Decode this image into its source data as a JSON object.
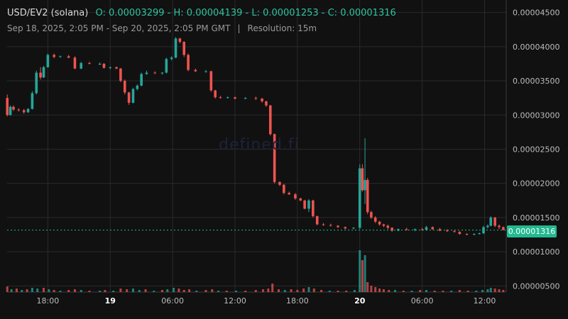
{
  "header": {
    "title": "USD/EV2 (solana)",
    "ohlc": "O: 0.00003299 - H: 0.00004139 - L: 0.00001253 - C: 0.00001316",
    "range": "Sep 18, 2025, 2:05 PM - Sep 20, 2025, 2:05 PM GMT",
    "separator": "|",
    "resolution": "Resolution: 15m"
  },
  "watermark": "defined.fi",
  "last_price_label": "0.00001316",
  "colors": {
    "up": "#26a69a",
    "down": "#ef5350",
    "background": "#111111",
    "grid": "#2a2a2a",
    "price_tag": "#22b990"
  },
  "chart_data": {
    "type": "candlestick",
    "title": "USD/EV2 (solana)",
    "yaxis": {
      "position": "right",
      "ticks": [
        "0.00000500",
        "0.00001000",
        "0.00001500",
        "0.00002000",
        "0.00002500",
        "0.00003000",
        "0.00003500",
        "0.00004000",
        "0.00004500"
      ],
      "range": [
        4.1e-06,
        4.6e-05
      ]
    },
    "xaxis": {
      "ticks": [
        {
          "label": "18:00",
          "bold": false,
          "hour": 18
        },
        {
          "label": "19",
          "bold": true,
          "hour": 24
        },
        {
          "label": "06:00",
          "bold": false,
          "hour": 30
        },
        {
          "label": "12:00",
          "bold": false,
          "hour": 36
        },
        {
          "label": "18:00",
          "bold": false,
          "hour": 42
        },
        {
          "label": "20",
          "bold": true,
          "hour": 48
        },
        {
          "label": "06:00",
          "bold": false,
          "hour": 54
        },
        {
          "label": "12:00",
          "bold": false,
          "hour": 60
        }
      ],
      "start_hour": 14.083,
      "end_hour": 62.083
    },
    "last_price": 1.316e-05,
    "series": [
      {
        "t": 14.1,
        "o": 3.25e-05,
        "h": 3.3e-05,
        "l": 2.98e-05,
        "c": 3e-05
      },
      {
        "t": 14.4,
        "o": 3e-05,
        "h": 3.14e-05,
        "l": 2.99e-05,
        "c": 3.12e-05
      },
      {
        "t": 14.7,
        "o": 3.12e-05,
        "h": 3.14e-05,
        "l": 3.06e-05,
        "c": 3.08e-05
      },
      {
        "t": 15.2,
        "o": 3.08e-05,
        "h": 3.1e-05,
        "l": 3.05e-05,
        "c": 3.07e-05
      },
      {
        "t": 15.7,
        "o": 3.07e-05,
        "h": 3.09e-05,
        "l": 3.02e-05,
        "c": 3.04e-05
      },
      {
        "t": 16.1,
        "o": 3.04e-05,
        "h": 3.1e-05,
        "l": 3.03e-05,
        "c": 3.09e-05
      },
      {
        "t": 16.5,
        "o": 3.09e-05,
        "h": 3.35e-05,
        "l": 3.08e-05,
        "c": 3.32e-05
      },
      {
        "t": 16.9,
        "o": 3.32e-05,
        "h": 3.65e-05,
        "l": 3.3e-05,
        "c": 3.62e-05
      },
      {
        "t": 17.3,
        "o": 3.62e-05,
        "h": 3.7e-05,
        "l": 3.52e-05,
        "c": 3.55e-05
      },
      {
        "t": 17.6,
        "o": 3.55e-05,
        "h": 3.72e-05,
        "l": 3.54e-05,
        "c": 3.7e-05
      },
      {
        "t": 18.0,
        "o": 3.7e-05,
        "h": 3.9e-05,
        "l": 3.69e-05,
        "c": 3.88e-05
      },
      {
        "t": 18.6,
        "o": 3.88e-05,
        "h": 3.9e-05,
        "l": 3.83e-05,
        "c": 3.85e-05
      },
      {
        "t": 19.2,
        "o": 3.85e-05,
        "h": 3.87e-05,
        "l": 3.84e-05,
        "c": 3.86e-05
      },
      {
        "t": 20.0,
        "o": 3.86e-05,
        "h": 3.88e-05,
        "l": 3.83e-05,
        "c": 3.84e-05
      },
      {
        "t": 20.6,
        "o": 3.84e-05,
        "h": 3.86e-05,
        "l": 3.67e-05,
        "c": 3.68e-05
      },
      {
        "t": 21.2,
        "o": 3.68e-05,
        "h": 3.78e-05,
        "l": 3.67e-05,
        "c": 3.76e-05
      },
      {
        "t": 22.0,
        "o": 3.76e-05,
        "h": 3.78e-05,
        "l": 3.74e-05,
        "c": 3.75e-05
      },
      {
        "t": 23.0,
        "o": 3.75e-05,
        "h": 3.77e-05,
        "l": 3.73e-05,
        "c": 3.75e-05
      },
      {
        "t": 23.4,
        "o": 3.75e-05,
        "h": 3.76e-05,
        "l": 3.68e-05,
        "c": 3.69e-05
      },
      {
        "t": 24.0,
        "o": 3.69e-05,
        "h": 3.71e-05,
        "l": 3.67e-05,
        "c": 3.7e-05
      },
      {
        "t": 24.6,
        "o": 3.7e-05,
        "h": 3.71e-05,
        "l": 3.67e-05,
        "c": 3.68e-05
      },
      {
        "t": 25.0,
        "o": 3.68e-05,
        "h": 3.69e-05,
        "l": 3.48e-05,
        "c": 3.5e-05
      },
      {
        "t": 25.4,
        "o": 3.5e-05,
        "h": 3.52e-05,
        "l": 3.3e-05,
        "c": 3.33e-05
      },
      {
        "t": 25.8,
        "o": 3.33e-05,
        "h": 3.34e-05,
        "l": 3.15e-05,
        "c": 3.18e-05
      },
      {
        "t": 26.2,
        "o": 3.18e-05,
        "h": 3.4e-05,
        "l": 3.17e-05,
        "c": 3.38e-05
      },
      {
        "t": 26.6,
        "o": 3.38e-05,
        "h": 3.45e-05,
        "l": 3.36e-05,
        "c": 3.43e-05
      },
      {
        "t": 27.0,
        "o": 3.43e-05,
        "h": 3.62e-05,
        "l": 3.42e-05,
        "c": 3.6e-05
      },
      {
        "t": 27.5,
        "o": 3.6e-05,
        "h": 3.65e-05,
        "l": 3.59e-05,
        "c": 3.62e-05
      },
      {
        "t": 28.3,
        "o": 3.62e-05,
        "h": 3.64e-05,
        "l": 3.6e-05,
        "c": 3.61e-05
      },
      {
        "t": 29.0,
        "o": 3.61e-05,
        "h": 3.63e-05,
        "l": 3.59e-05,
        "c": 3.62e-05
      },
      {
        "t": 29.4,
        "o": 3.62e-05,
        "h": 3.84e-05,
        "l": 3.61e-05,
        "c": 3.82e-05
      },
      {
        "t": 29.9,
        "o": 3.82e-05,
        "h": 3.86e-05,
        "l": 3.8e-05,
        "c": 3.84e-05
      },
      {
        "t": 30.3,
        "o": 3.84e-05,
        "h": 4.14e-05,
        "l": 3.83e-05,
        "c": 4.12e-05
      },
      {
        "t": 30.7,
        "o": 4.12e-05,
        "h": 4.13e-05,
        "l": 4.05e-05,
        "c": 4.07e-05
      },
      {
        "t": 31.1,
        "o": 4.07e-05,
        "h": 4.08e-05,
        "l": 3.85e-05,
        "c": 3.88e-05
      },
      {
        "t": 31.5,
        "o": 3.88e-05,
        "h": 3.9e-05,
        "l": 3.64e-05,
        "c": 3.66e-05
      },
      {
        "t": 32.2,
        "o": 3.66e-05,
        "h": 3.68e-05,
        "l": 3.63e-05,
        "c": 3.64e-05
      },
      {
        "t": 33.2,
        "o": 3.64e-05,
        "h": 3.66e-05,
        "l": 3.62e-05,
        "c": 3.64e-05
      },
      {
        "t": 33.7,
        "o": 3.64e-05,
        "h": 3.65e-05,
        "l": 3.34e-05,
        "c": 3.36e-05
      },
      {
        "t": 34.1,
        "o": 3.36e-05,
        "h": 3.37e-05,
        "l": 3.24e-05,
        "c": 3.26e-05
      },
      {
        "t": 34.6,
        "o": 3.26e-05,
        "h": 3.28e-05,
        "l": 3.24e-05,
        "c": 3.25e-05
      },
      {
        "t": 35.3,
        "o": 3.25e-05,
        "h": 3.27e-05,
        "l": 3.24e-05,
        "c": 3.26e-05
      },
      {
        "t": 36.0,
        "o": 3.26e-05,
        "h": 3.27e-05,
        "l": 3.23e-05,
        "c": 3.24e-05
      },
      {
        "t": 37.0,
        "o": 3.24e-05,
        "h": 3.26e-05,
        "l": 3.23e-05,
        "c": 3.25e-05
      },
      {
        "t": 38.0,
        "o": 3.25e-05,
        "h": 3.27e-05,
        "l": 3.22e-05,
        "c": 3.24e-05
      },
      {
        "t": 38.6,
        "o": 3.24e-05,
        "h": 3.25e-05,
        "l": 3.18e-05,
        "c": 3.2e-05
      },
      {
        "t": 39.0,
        "o": 3.2e-05,
        "h": 3.21e-05,
        "l": 3.12e-05,
        "c": 3.14e-05
      },
      {
        "t": 39.4,
        "o": 3.14e-05,
        "h": 3.15e-05,
        "l": 2.7e-05,
        "c": 2.72e-05
      },
      {
        "t": 39.8,
        "o": 2.72e-05,
        "h": 2.73e-05,
        "l": 2e-05,
        "c": 2.02e-05
      },
      {
        "t": 40.3,
        "o": 2.02e-05,
        "h": 2.03e-05,
        "l": 1.96e-05,
        "c": 1.98e-05
      },
      {
        "t": 40.7,
        "o": 1.98e-05,
        "h": 1.99e-05,
        "l": 1.84e-05,
        "c": 1.86e-05
      },
      {
        "t": 41.2,
        "o": 1.86e-05,
        "h": 1.88e-05,
        "l": 1.83e-05,
        "c": 1.84e-05
      },
      {
        "t": 41.8,
        "o": 1.84e-05,
        "h": 1.86e-05,
        "l": 1.76e-05,
        "c": 1.78e-05
      },
      {
        "t": 42.3,
        "o": 1.78e-05,
        "h": 1.79e-05,
        "l": 1.74e-05,
        "c": 1.75e-05
      },
      {
        "t": 42.7,
        "o": 1.75e-05,
        "h": 1.76e-05,
        "l": 1.62e-05,
        "c": 1.63e-05
      },
      {
        "t": 43.1,
        "o": 1.63e-05,
        "h": 1.77e-05,
        "l": 1.58e-05,
        "c": 1.75e-05
      },
      {
        "t": 43.5,
        "o": 1.75e-05,
        "h": 1.76e-05,
        "l": 1.5e-05,
        "c": 1.52e-05
      },
      {
        "t": 43.9,
        "o": 1.52e-05,
        "h": 1.53e-05,
        "l": 1.39e-05,
        "c": 1.4e-05
      },
      {
        "t": 44.5,
        "o": 1.4e-05,
        "h": 1.42e-05,
        "l": 1.38e-05,
        "c": 1.39e-05
      },
      {
        "t": 45.2,
        "o": 1.39e-05,
        "h": 1.41e-05,
        "l": 1.37e-05,
        "c": 1.38e-05
      },
      {
        "t": 45.9,
        "o": 1.38e-05,
        "h": 1.39e-05,
        "l": 1.35e-05,
        "c": 1.36e-05
      },
      {
        "t": 46.6,
        "o": 1.36e-05,
        "h": 1.37e-05,
        "l": 1.33e-05,
        "c": 1.34e-05
      },
      {
        "t": 47.4,
        "o": 1.34e-05,
        "h": 1.36e-05,
        "l": 1.33e-05,
        "c": 1.35e-05
      },
      {
        "t": 48.0,
        "o": 1.35e-05,
        "h": 2.28e-05,
        "l": 1.33e-05,
        "c": 2.22e-05
      },
      {
        "t": 48.25,
        "o": 2.22e-05,
        "h": 2.28e-05,
        "l": 1.88e-05,
        "c": 1.9e-05
      },
      {
        "t": 48.5,
        "o": 1.9e-05,
        "h": 2.66e-05,
        "l": 1.7e-05,
        "c": 2.05e-05
      },
      {
        "t": 48.75,
        "o": 2.05e-05,
        "h": 2.08e-05,
        "l": 1.55e-05,
        "c": 1.58e-05
      },
      {
        "t": 49.1,
        "o": 1.58e-05,
        "h": 1.6e-05,
        "l": 1.48e-05,
        "c": 1.5e-05
      },
      {
        "t": 49.5,
        "o": 1.5e-05,
        "h": 1.52e-05,
        "l": 1.42e-05,
        "c": 1.44e-05
      },
      {
        "t": 49.9,
        "o": 1.44e-05,
        "h": 1.45e-05,
        "l": 1.38e-05,
        "c": 1.4e-05
      },
      {
        "t": 50.3,
        "o": 1.4e-05,
        "h": 1.41e-05,
        "l": 1.36e-05,
        "c": 1.38e-05
      },
      {
        "t": 50.7,
        "o": 1.38e-05,
        "h": 1.4e-05,
        "l": 1.33e-05,
        "c": 1.35e-05
      },
      {
        "t": 51.1,
        "o": 1.35e-05,
        "h": 1.36e-05,
        "l": 1.29e-05,
        "c": 1.31e-05
      },
      {
        "t": 51.7,
        "o": 1.31e-05,
        "h": 1.34e-05,
        "l": 1.3e-05,
        "c": 1.33e-05
      },
      {
        "t": 52.5,
        "o": 1.33e-05,
        "h": 1.35e-05,
        "l": 1.31e-05,
        "c": 1.32e-05
      },
      {
        "t": 53.3,
        "o": 1.32e-05,
        "h": 1.34e-05,
        "l": 1.3e-05,
        "c": 1.33e-05
      },
      {
        "t": 54.0,
        "o": 1.33e-05,
        "h": 1.35e-05,
        "l": 1.31e-05,
        "c": 1.32e-05
      },
      {
        "t": 54.4,
        "o": 1.32e-05,
        "h": 1.38e-05,
        "l": 1.31e-05,
        "c": 1.36e-05
      },
      {
        "t": 55.0,
        "o": 1.36e-05,
        "h": 1.37e-05,
        "l": 1.32e-05,
        "c": 1.33e-05
      },
      {
        "t": 55.7,
        "o": 1.33e-05,
        "h": 1.35e-05,
        "l": 1.3e-05,
        "c": 1.31e-05
      },
      {
        "t": 56.4,
        "o": 1.31e-05,
        "h": 1.33e-05,
        "l": 1.29e-05,
        "c": 1.3e-05
      },
      {
        "t": 57.1,
        "o": 1.3e-05,
        "h": 1.32e-05,
        "l": 1.28e-05,
        "c": 1.29e-05
      },
      {
        "t": 57.6,
        "o": 1.29e-05,
        "h": 1.3e-05,
        "l": 1.25e-05,
        "c": 1.26e-05
      },
      {
        "t": 58.3,
        "o": 1.26e-05,
        "h": 1.27e-05,
        "l": 1.24e-05,
        "c": 1.25e-05
      },
      {
        "t": 59.0,
        "o": 1.25e-05,
        "h": 1.27e-05,
        "l": 1.24e-05,
        "c": 1.26e-05
      },
      {
        "t": 59.5,
        "o": 1.26e-05,
        "h": 1.28e-05,
        "l": 1.25e-05,
        "c": 1.27e-05
      },
      {
        "t": 59.9,
        "o": 1.27e-05,
        "h": 1.38e-05,
        "l": 1.26e-05,
        "c": 1.36e-05
      },
      {
        "t": 60.3,
        "o": 1.36e-05,
        "h": 1.4e-05,
        "l": 1.34e-05,
        "c": 1.38e-05
      },
      {
        "t": 60.6,
        "o": 1.38e-05,
        "h": 1.52e-05,
        "l": 1.37e-05,
        "c": 1.5e-05
      },
      {
        "t": 61.0,
        "o": 1.5e-05,
        "h": 1.51e-05,
        "l": 1.36e-05,
        "c": 1.38e-05
      },
      {
        "t": 61.4,
        "o": 1.38e-05,
        "h": 1.4e-05,
        "l": 1.33e-05,
        "c": 1.36e-05
      },
      {
        "t": 61.8,
        "o": 1.36e-05,
        "h": 1.37e-05,
        "l": 1.31e-05,
        "c": 1.32e-05
      }
    ],
    "volume": [
      {
        "t": 14.1,
        "v": 8,
        "up": false
      },
      {
        "t": 14.5,
        "v": 4,
        "up": true
      },
      {
        "t": 15.0,
        "v": 5,
        "up": false
      },
      {
        "t": 15.5,
        "v": 3,
        "up": true
      },
      {
        "t": 16.0,
        "v": 4,
        "up": false
      },
      {
        "t": 16.5,
        "v": 6,
        "up": true
      },
      {
        "t": 17.0,
        "v": 5,
        "up": true
      },
      {
        "t": 17.6,
        "v": 6,
        "up": false
      },
      {
        "t": 18.1,
        "v": 4,
        "up": true
      },
      {
        "t": 18.6,
        "v": 3,
        "up": false
      },
      {
        "t": 19.2,
        "v": 2,
        "up": true
      },
      {
        "t": 20.0,
        "v": 3,
        "up": false
      },
      {
        "t": 20.6,
        "v": 4,
        "up": false
      },
      {
        "t": 21.2,
        "v": 3,
        "up": true
      },
      {
        "t": 22.0,
        "v": 2,
        "up": false
      },
      {
        "t": 23.0,
        "v": 2,
        "up": true
      },
      {
        "t": 23.5,
        "v": 3,
        "up": false
      },
      {
        "t": 24.3,
        "v": 2,
        "up": true
      },
      {
        "t": 25.0,
        "v": 5,
        "up": false
      },
      {
        "t": 25.6,
        "v": 4,
        "up": false
      },
      {
        "t": 26.2,
        "v": 5,
        "up": true
      },
      {
        "t": 26.8,
        "v": 3,
        "up": true
      },
      {
        "t": 27.4,
        "v": 4,
        "up": false
      },
      {
        "t": 28.2,
        "v": 2,
        "up": true
      },
      {
        "t": 29.0,
        "v": 3,
        "up": false
      },
      {
        "t": 29.5,
        "v": 4,
        "up": true
      },
      {
        "t": 30.1,
        "v": 6,
        "up": true
      },
      {
        "t": 30.6,
        "v": 5,
        "up": false
      },
      {
        "t": 31.1,
        "v": 3,
        "up": false
      },
      {
        "t": 31.6,
        "v": 4,
        "up": false
      },
      {
        "t": 32.3,
        "v": 2,
        "up": true
      },
      {
        "t": 33.2,
        "v": 3,
        "up": false
      },
      {
        "t": 33.8,
        "v": 4,
        "up": false
      },
      {
        "t": 34.4,
        "v": 2,
        "up": true
      },
      {
        "t": 35.2,
        "v": 2,
        "up": false
      },
      {
        "t": 36.1,
        "v": 2,
        "up": true
      },
      {
        "t": 37.0,
        "v": 2,
        "up": false
      },
      {
        "t": 38.0,
        "v": 3,
        "up": false
      },
      {
        "t": 38.7,
        "v": 4,
        "up": false
      },
      {
        "t": 39.2,
        "v": 5,
        "up": false
      },
      {
        "t": 39.6,
        "v": 12,
        "up": false
      },
      {
        "t": 40.2,
        "v": 4,
        "up": false
      },
      {
        "t": 40.8,
        "v": 3,
        "up": true
      },
      {
        "t": 41.4,
        "v": 4,
        "up": false
      },
      {
        "t": 42.0,
        "v": 3,
        "up": false
      },
      {
        "t": 42.6,
        "v": 5,
        "up": false
      },
      {
        "t": 43.1,
        "v": 7,
        "up": true
      },
      {
        "t": 43.6,
        "v": 5,
        "up": false
      },
      {
        "t": 44.3,
        "v": 3,
        "up": false
      },
      {
        "t": 45.1,
        "v": 2,
        "up": true
      },
      {
        "t": 45.9,
        "v": 2,
        "up": false
      },
      {
        "t": 46.7,
        "v": 2,
        "up": false
      },
      {
        "t": 47.5,
        "v": 3,
        "up": true
      },
      {
        "t": 48.0,
        "v": 59,
        "up": true
      },
      {
        "t": 48.25,
        "v": 45,
        "up": false
      },
      {
        "t": 48.5,
        "v": 52,
        "up": true
      },
      {
        "t": 48.75,
        "v": 14,
        "up": false
      },
      {
        "t": 49.1,
        "v": 9,
        "up": false
      },
      {
        "t": 49.5,
        "v": 7,
        "up": false
      },
      {
        "t": 49.9,
        "v": 5,
        "up": false
      },
      {
        "t": 50.3,
        "v": 4,
        "up": false
      },
      {
        "t": 50.8,
        "v": 3,
        "up": false
      },
      {
        "t": 51.4,
        "v": 3,
        "up": true
      },
      {
        "t": 52.2,
        "v": 2,
        "up": false
      },
      {
        "t": 53.0,
        "v": 2,
        "up": true
      },
      {
        "t": 53.8,
        "v": 3,
        "up": false
      },
      {
        "t": 54.4,
        "v": 3,
        "up": true
      },
      {
        "t": 55.2,
        "v": 2,
        "up": false
      },
      {
        "t": 56.0,
        "v": 2,
        "up": false
      },
      {
        "t": 56.8,
        "v": 2,
        "up": true
      },
      {
        "t": 57.6,
        "v": 3,
        "up": false
      },
      {
        "t": 58.4,
        "v": 2,
        "up": false
      },
      {
        "t": 59.2,
        "v": 2,
        "up": true
      },
      {
        "t": 59.8,
        "v": 3,
        "up": true
      },
      {
        "t": 60.3,
        "v": 4,
        "up": true
      },
      {
        "t": 60.6,
        "v": 6,
        "up": true
      },
      {
        "t": 61.0,
        "v": 5,
        "up": false
      },
      {
        "t": 61.4,
        "v": 4,
        "up": false
      },
      {
        "t": 61.8,
        "v": 3,
        "up": false
      }
    ]
  }
}
